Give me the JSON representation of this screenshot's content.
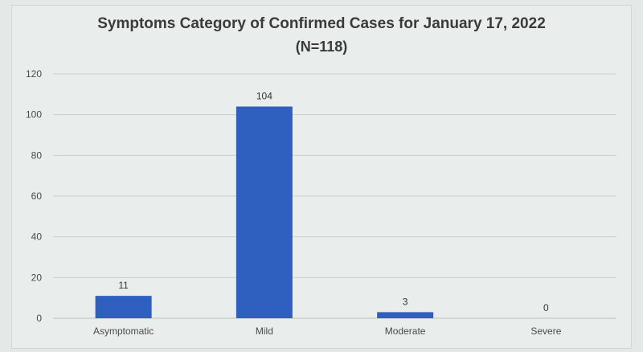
{
  "chart_data": {
    "type": "bar",
    "title": "Symptoms Category of Confirmed Cases for  January 17, 2022",
    "subtitle": "(N=118)",
    "categories": [
      "Asymptomatic",
      "Mild",
      "Moderate",
      "Severe"
    ],
    "values": [
      11,
      104,
      3,
      0
    ],
    "data_labels": [
      "11",
      "104",
      "3",
      "0"
    ],
    "ylim": [
      0,
      120
    ],
    "yticks": [
      0,
      20,
      40,
      60,
      80,
      100,
      120
    ],
    "grid": true,
    "legend": "none",
    "bar_color": "#2f5fbf",
    "grid_color": "#c9cfce"
  }
}
